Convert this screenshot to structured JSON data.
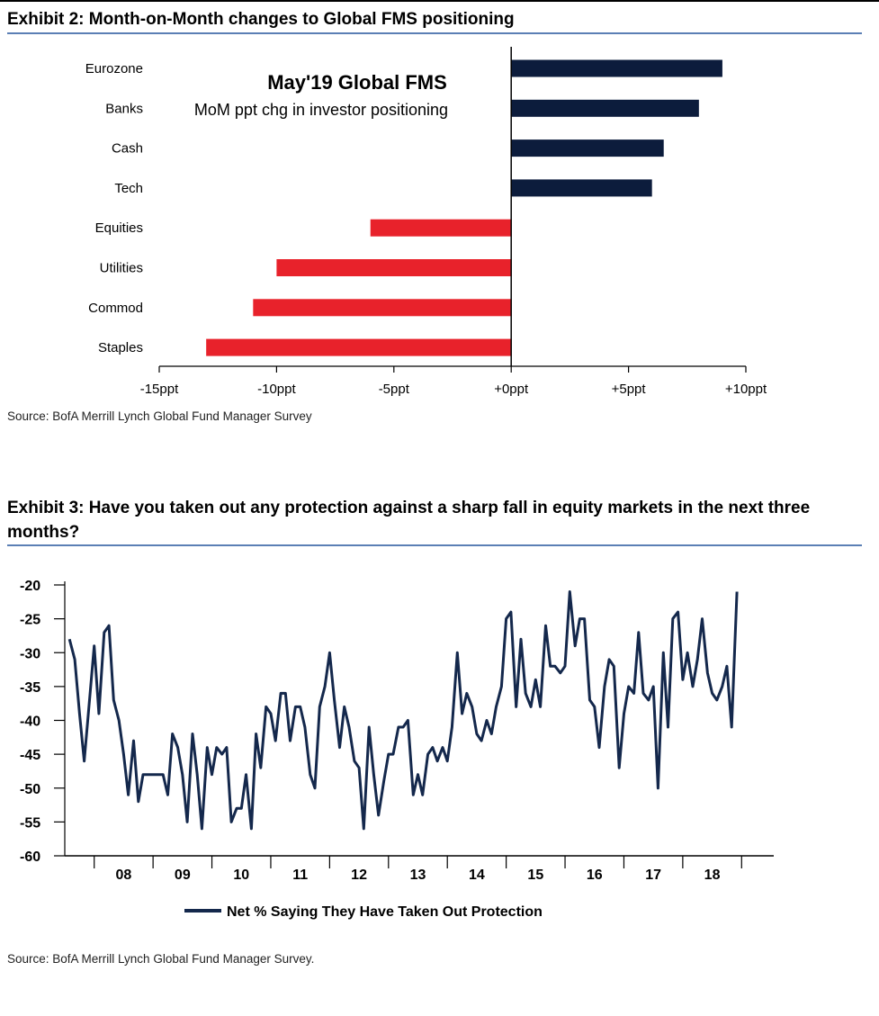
{
  "exhibit2": {
    "title": "Exhibit 2: Month-on-Month changes to Global FMS positioning",
    "source": "Source: BofA Merrill Lynch Global Fund Manager Survey"
  },
  "exhibit3": {
    "title_line1": "Exhibit 3: Have you taken out any protection against a sharp fall in equity markets in the next three",
    "title_line2": "months?",
    "source": "Source: BofA Merrill Lynch Global Fund Manager Survey."
  },
  "colors": {
    "positive": "#0c1c3c",
    "negative": "#e8222b",
    "line": "#14284c",
    "rule": "#5b7fb5"
  },
  "chart_data": [
    {
      "type": "bar",
      "orientation": "horizontal",
      "title": "May'19 Global FMS",
      "subtitle": "MoM ppt chg in investor positioning",
      "categories": [
        "Eurozone",
        "Banks",
        "Cash",
        "Tech",
        "Equities",
        "Utilities",
        "Commod",
        "Staples"
      ],
      "values": [
        9,
        8,
        6.5,
        6,
        -6,
        -10,
        -11,
        -13
      ],
      "xlim": [
        -15,
        10
      ],
      "xticks": [
        -15,
        -10,
        -5,
        0,
        5,
        10
      ],
      "xtick_labels": [
        "-15ppt",
        "-10ppt",
        "-5ppt",
        "+0ppt",
        "+5ppt",
        "+10ppt"
      ],
      "grid": false
    },
    {
      "type": "line",
      "ylim": [
        -60,
        -20
      ],
      "yticks": [
        -20,
        -25,
        -30,
        -35,
        -40,
        -45,
        -50,
        -55,
        -60
      ],
      "ytick_labels": [
        "-20",
        "-25",
        "-30",
        "-35",
        "-40",
        "-45",
        "-50",
        "-55",
        "-60"
      ],
      "xlim": [
        2007.5,
        2019.5
      ],
      "xtick_labels": [
        "08",
        "09",
        "10",
        "11",
        "12",
        "13",
        "14",
        "15",
        "16",
        "17",
        "18"
      ],
      "legend": "bottom-center",
      "series": [
        {
          "name": "Net % Saying They Have Taken Out Protection",
          "points": [
            [
              2007.58,
              -28
            ],
            [
              2007.67,
              -31
            ],
            [
              2007.75,
              -39
            ],
            [
              2007.83,
              -46
            ],
            [
              2007.92,
              -37
            ],
            [
              2008.0,
              -29
            ],
            [
              2008.08,
              -39
            ],
            [
              2008.17,
              -27
            ],
            [
              2008.25,
              -26
            ],
            [
              2008.33,
              -37
            ],
            [
              2008.42,
              -40
            ],
            [
              2008.5,
              -45
            ],
            [
              2008.58,
              -51
            ],
            [
              2008.67,
              -43
            ],
            [
              2008.75,
              -52
            ],
            [
              2008.83,
              -48
            ],
            [
              2008.92,
              -48
            ],
            [
              2009.0,
              -48
            ],
            [
              2009.08,
              -48
            ],
            [
              2009.17,
              -48
            ],
            [
              2009.25,
              -51
            ],
            [
              2009.33,
              -42
            ],
            [
              2009.42,
              -44
            ],
            [
              2009.5,
              -48
            ],
            [
              2009.58,
              -55
            ],
            [
              2009.67,
              -42
            ],
            [
              2009.75,
              -48
            ],
            [
              2009.83,
              -56
            ],
            [
              2009.92,
              -44
            ],
            [
              2010.0,
              -48
            ],
            [
              2010.08,
              -44
            ],
            [
              2010.17,
              -45
            ],
            [
              2010.25,
              -44
            ],
            [
              2010.33,
              -55
            ],
            [
              2010.42,
              -53
            ],
            [
              2010.5,
              -53
            ],
            [
              2010.58,
              -48
            ],
            [
              2010.67,
              -56
            ],
            [
              2010.75,
              -42
            ],
            [
              2010.83,
              -47
            ],
            [
              2010.92,
              -38
            ],
            [
              2011.0,
              -39
            ],
            [
              2011.08,
              -43
            ],
            [
              2011.17,
              -36
            ],
            [
              2011.25,
              -36
            ],
            [
              2011.33,
              -43
            ],
            [
              2011.42,
              -38
            ],
            [
              2011.5,
              -38
            ],
            [
              2011.58,
              -41
            ],
            [
              2011.67,
              -48
            ],
            [
              2011.75,
              -50
            ],
            [
              2011.83,
              -38
            ],
            [
              2011.92,
              -35
            ],
            [
              2012.0,
              -30
            ],
            [
              2012.08,
              -37
            ],
            [
              2012.17,
              -44
            ],
            [
              2012.25,
              -38
            ],
            [
              2012.33,
              -41
            ],
            [
              2012.42,
              -46
            ],
            [
              2012.5,
              -47
            ],
            [
              2012.58,
              -56
            ],
            [
              2012.67,
              -41
            ],
            [
              2012.75,
              -48
            ],
            [
              2012.83,
              -54
            ],
            [
              2012.92,
              -49
            ],
            [
              2013.0,
              -45
            ],
            [
              2013.08,
              -45
            ],
            [
              2013.17,
              -41
            ],
            [
              2013.25,
              -41
            ],
            [
              2013.33,
              -40
            ],
            [
              2013.42,
              -51
            ],
            [
              2013.5,
              -48
            ],
            [
              2013.58,
              -51
            ],
            [
              2013.67,
              -45
            ],
            [
              2013.75,
              -44
            ],
            [
              2013.83,
              -46
            ],
            [
              2013.92,
              -44
            ],
            [
              2014.0,
              -46
            ],
            [
              2014.08,
              -41
            ],
            [
              2014.17,
              -30
            ],
            [
              2014.25,
              -39
            ],
            [
              2014.33,
              -36
            ],
            [
              2014.42,
              -38
            ],
            [
              2014.5,
              -42
            ],
            [
              2014.58,
              -43
            ],
            [
              2014.67,
              -40
            ],
            [
              2014.75,
              -42
            ],
            [
              2014.83,
              -38
            ],
            [
              2014.92,
              -35
            ],
            [
              2015.0,
              -25
            ],
            [
              2015.08,
              -24
            ],
            [
              2015.17,
              -38
            ],
            [
              2015.25,
              -28
            ],
            [
              2015.33,
              -36
            ],
            [
              2015.42,
              -38
            ],
            [
              2015.5,
              -34
            ],
            [
              2015.58,
              -38
            ],
            [
              2015.67,
              -26
            ],
            [
              2015.75,
              -32
            ],
            [
              2015.83,
              -32
            ],
            [
              2015.92,
              -33
            ],
            [
              2016.0,
              -32
            ],
            [
              2016.08,
              -21
            ],
            [
              2016.17,
              -29
            ],
            [
              2016.25,
              -25
            ],
            [
              2016.33,
              -25
            ],
            [
              2016.42,
              -37
            ],
            [
              2016.5,
              -38
            ],
            [
              2016.58,
              -44
            ],
            [
              2016.67,
              -35
            ],
            [
              2016.75,
              -31
            ],
            [
              2016.83,
              -32
            ],
            [
              2016.92,
              -47
            ],
            [
              2017.0,
              -39
            ],
            [
              2017.08,
              -35
            ],
            [
              2017.17,
              -36
            ],
            [
              2017.25,
              -27
            ],
            [
              2017.33,
              -36
            ],
            [
              2017.42,
              -37
            ],
            [
              2017.5,
              -35
            ],
            [
              2017.58,
              -50
            ],
            [
              2017.67,
              -30
            ],
            [
              2017.75,
              -41
            ],
            [
              2017.83,
              -25
            ],
            [
              2017.92,
              -24
            ],
            [
              2018.0,
              -34
            ],
            [
              2018.08,
              -30
            ],
            [
              2018.17,
              -35
            ],
            [
              2018.25,
              -31
            ],
            [
              2018.33,
              -25
            ],
            [
              2018.42,
              -33
            ],
            [
              2018.5,
              -36
            ],
            [
              2018.58,
              -37
            ],
            [
              2018.67,
              -35
            ],
            [
              2018.75,
              -32
            ],
            [
              2018.83,
              -41
            ],
            [
              2018.92,
              -21
            ]
          ]
        }
      ]
    }
  ]
}
